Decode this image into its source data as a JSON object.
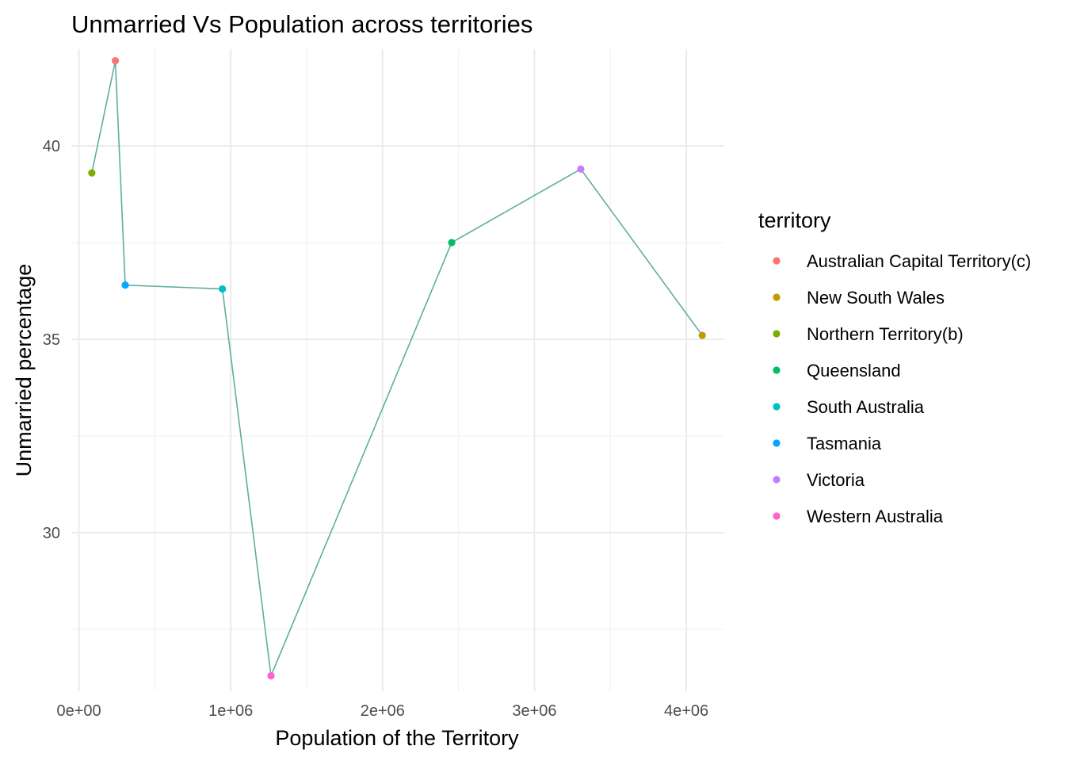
{
  "chart_data": {
    "type": "line",
    "title": "Unmarried Vs Population across territories",
    "xlabel": "Population of the Territory",
    "ylabel": "Unmarried percentage",
    "xlim": [
      -50000,
      4250000
    ],
    "ylim": [
      25.9,
      42.5
    ],
    "xticks": [
      0,
      1000000,
      2000000,
      3000000,
      4000000
    ],
    "xtick_labels": [
      "0e+00",
      "1e+06",
      "2e+06",
      "3e+06",
      "4e+06"
    ],
    "yticks": [
      30,
      35,
      40
    ],
    "ytick_labels": [
      "30",
      "35",
      "40"
    ],
    "grid": true,
    "line_color": "#5fada1",
    "legend": {
      "title": "territory",
      "placement": "right",
      "items": [
        {
          "label": "Australian Capital Territory(c)",
          "color": "#f8766d"
        },
        {
          "label": "New South Wales",
          "color": "#c49a00"
        },
        {
          "label": "Northern Territory(b)",
          "color": "#7cae00"
        },
        {
          "label": "Queensland",
          "color": "#00be67"
        },
        {
          "label": "South Australia",
          "color": "#00bfc4"
        },
        {
          "label": "Tasmania",
          "color": "#00a9ff"
        },
        {
          "label": "Victoria",
          "color": "#c77cff"
        },
        {
          "label": "Western Australia",
          "color": "#ff61cc"
        }
      ]
    },
    "points": [
      {
        "territory": "Northern Territory(b)",
        "x": 85000,
        "y": 39.3,
        "color": "#7cae00"
      },
      {
        "territory": "Australian Capital Territory(c)",
        "x": 240000,
        "y": 42.2,
        "color": "#f8766d"
      },
      {
        "territory": "Tasmania",
        "x": 305000,
        "y": 36.4,
        "color": "#00a9ff"
      },
      {
        "territory": "South Australia",
        "x": 945000,
        "y": 36.3,
        "color": "#00bfc4"
      },
      {
        "territory": "Western Australia",
        "x": 1265000,
        "y": 26.3,
        "color": "#ff61cc"
      },
      {
        "territory": "Queensland",
        "x": 2455000,
        "y": 37.5,
        "color": "#00be67"
      },
      {
        "territory": "Victoria",
        "x": 3305000,
        "y": 39.4,
        "color": "#c77cff"
      },
      {
        "territory": "New South Wales",
        "x": 4105000,
        "y": 35.1,
        "color": "#c49a00"
      }
    ]
  }
}
